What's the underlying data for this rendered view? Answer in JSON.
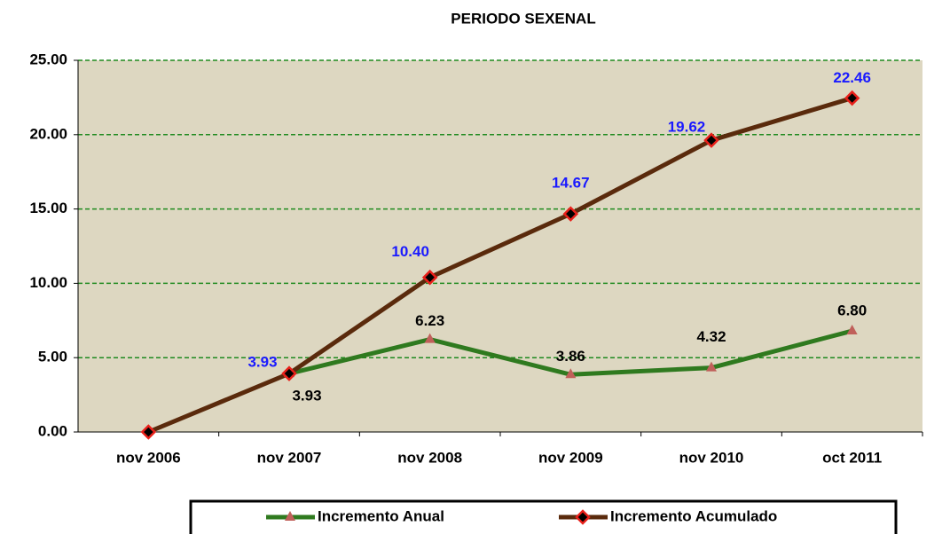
{
  "chart_data": {
    "type": "line",
    "title": "PERIODO SEXENAL",
    "categories": [
      "nov 2006",
      "nov 2007",
      "nov 2008",
      "nov 2009",
      "nov 2010",
      "oct 2011"
    ],
    "series": [
      {
        "name": "Incremento Anual",
        "color": "#2f7a1f",
        "marker_color": "#c0605a",
        "values": [
          null,
          3.93,
          6.23,
          3.86,
          4.32,
          6.8
        ],
        "value_labels": [
          null,
          "3.93",
          "6.23",
          "3.86",
          "4.32",
          "6.80"
        ],
        "label_color": "#000000"
      },
      {
        "name": "Incremento Acumulado",
        "color": "#5a2a0c",
        "marker_color": "#e8201a",
        "values": [
          0,
          3.93,
          10.4,
          14.67,
          19.62,
          22.46
        ],
        "value_labels": [
          null,
          "3.93",
          "10.40",
          "14.67",
          "19.62",
          "22.46"
        ],
        "label_color": "#1a1aff"
      }
    ],
    "ylim": [
      0,
      25
    ],
    "yticks": [
      {
        "value": 0,
        "label": "0.00"
      },
      {
        "value": 5,
        "label": "5.00"
      },
      {
        "value": 10,
        "label": "10.00"
      },
      {
        "value": 15,
        "label": "15.00"
      },
      {
        "value": 20,
        "label": "20.00"
      },
      {
        "value": 25,
        "label": "25.00"
      }
    ],
    "grid": true,
    "legend": "bottom"
  }
}
